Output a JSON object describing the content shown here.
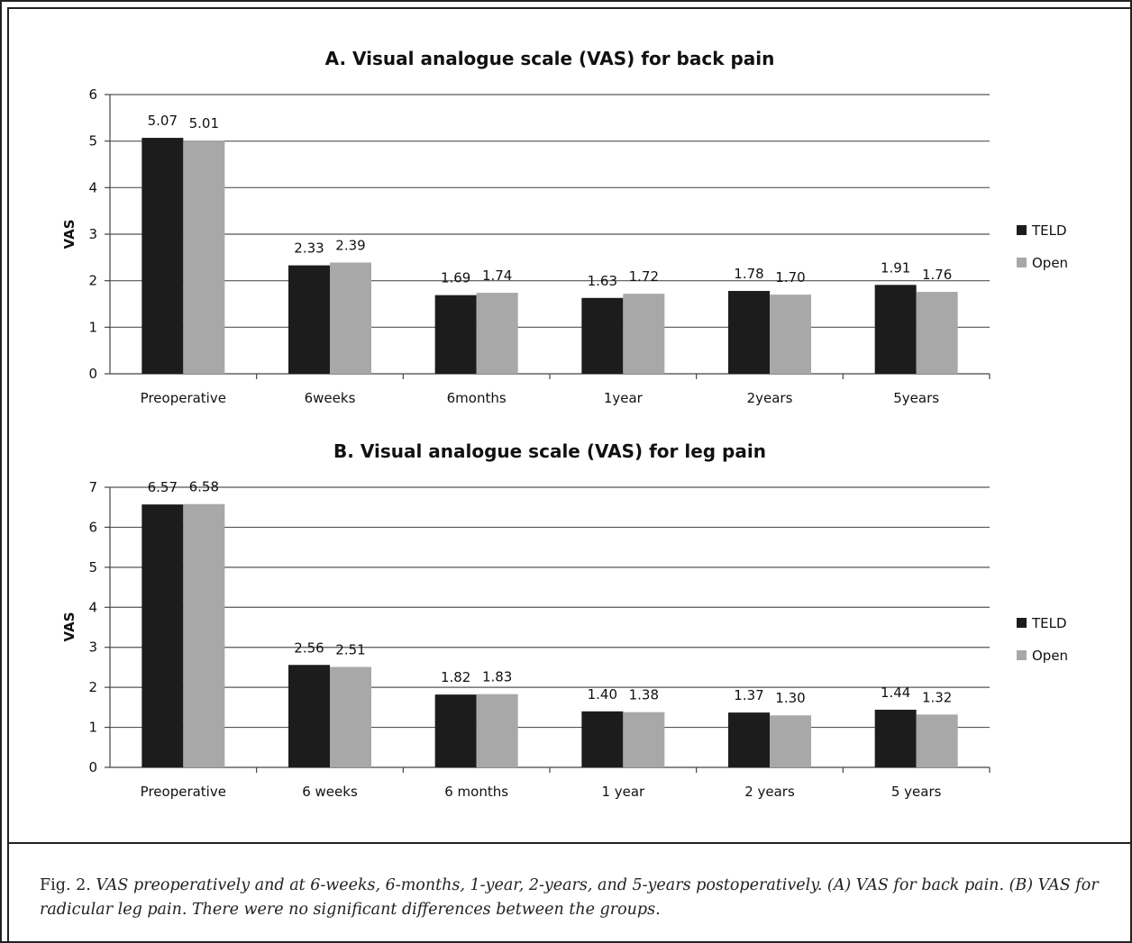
{
  "chart_data": [
    {
      "type": "bar",
      "title": "A. Visual analogue scale (VAS) for back pain",
      "ylabel": "VAS",
      "xlabel": "",
      "ylim": [
        0,
        6
      ],
      "yticks": [
        0,
        1,
        2,
        3,
        4,
        5,
        6
      ],
      "grid": true,
      "legend": "right",
      "categories": [
        "Preoperative",
        "6weeks",
        "6months",
        "1year",
        "2years",
        "5years"
      ],
      "series": [
        {
          "name": "TELD",
          "color": "#1c1c1c",
          "values": [
            5.07,
            2.33,
            1.69,
            1.63,
            1.78,
            1.91
          ],
          "labels": [
            "5.07",
            "2.33",
            "1.69",
            "1.63",
            "1.78",
            "1.91"
          ]
        },
        {
          "name": "Open",
          "color": "#a8a8a8",
          "values": [
            5.01,
            2.39,
            1.74,
            1.72,
            1.7,
            1.76
          ],
          "labels": [
            "5.01",
            "2.39",
            "1.74",
            "1.72",
            "1.70",
            "1.76"
          ]
        }
      ]
    },
    {
      "type": "bar",
      "title": "B. Visual analogue scale (VAS) for leg pain",
      "ylabel": "VAS",
      "xlabel": "",
      "ylim": [
        0,
        7
      ],
      "yticks": [
        0,
        1,
        2,
        3,
        4,
        5,
        6,
        7
      ],
      "grid": true,
      "legend": "right",
      "categories": [
        "Preoperative",
        "6 weeks",
        "6 months",
        "1 year",
        "2 years",
        "5 years"
      ],
      "series": [
        {
          "name": "TELD",
          "color": "#1c1c1c",
          "values": [
            6.57,
            2.56,
            1.82,
            1.4,
            1.37,
            1.44
          ],
          "labels": [
            "6.57",
            "2.56",
            "1.82",
            "1.40",
            "1.37",
            "1.44"
          ]
        },
        {
          "name": "Open",
          "color": "#a8a8a8",
          "values": [
            6.58,
            2.51,
            1.83,
            1.38,
            1.3,
            1.32
          ],
          "labels": [
            "6.58",
            "2.51",
            "1.83",
            "1.38",
            "1.30",
            "1.32"
          ]
        }
      ]
    }
  ],
  "caption": {
    "lead": "Fig. 2.",
    "body": "VAS preoperatively and at 6-weeks, 6-months, 1-year, 2-years, and 5-years postoperatively. (A) VAS for back pain. (B) VAS for radicular leg pain. There were no significant differences between the groups."
  }
}
